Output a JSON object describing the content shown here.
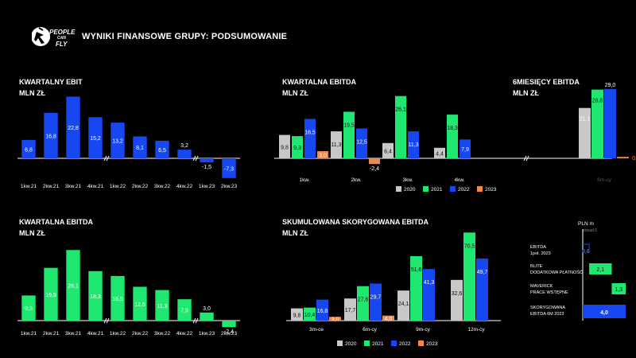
{
  "page": {
    "title": "WYNIKI FINANSOWE GRUPY: PODSUMOWANIE",
    "logo": {
      "line1": "PEOPLE",
      "line2": "CAN",
      "line3": "FLY"
    }
  },
  "colors": {
    "y2020": "#c8c8c8",
    "y2021": "#1fe870",
    "y2022": "#1747f0",
    "y2023": "#f0894a",
    "axis": "#ffffff"
  },
  "legend": [
    "2020",
    "2021",
    "2022",
    "2023"
  ],
  "chart_data": [
    {
      "id": "ebit",
      "type": "bar",
      "title": "KWARTALNY EBIT",
      "ylabel": "MLN ZŁ",
      "categories": [
        "1kw.21",
        "2kw.21",
        "3kw.21",
        "4kw.21",
        "1kw.22",
        "2kw.22",
        "3kw.22",
        "4kw.22",
        "1kw.23",
        "2kw.23"
      ],
      "values": [
        6.8,
        16.8,
        22.8,
        15.2,
        13.2,
        8.1,
        6.5,
        3.2,
        -1.5,
        -7.3
      ],
      "labels": [
        "6,8",
        "16,8",
        "22,8",
        "15,2",
        "13,2",
        "8,1",
        "6,5",
        "3,2",
        "-1,5",
        "-7,3"
      ],
      "color": "#1747f0"
    },
    {
      "id": "ebitda_q",
      "type": "bar",
      "title": "KWARTALNA EBITDA",
      "ylabel": "MLN ZŁ",
      "categories": [
        "1kw.",
        "2kw.",
        "3kw.",
        "4kw."
      ],
      "series": [
        {
          "name": "2020",
          "values": [
            9.8,
            11.3,
            6.4,
            4.4
          ],
          "labels": [
            "9,8",
            "11,3",
            "6,4",
            "4,4"
          ]
        },
        {
          "name": "2021",
          "values": [
            9.3,
            19.5,
            26.1,
            18.3
          ],
          "labels": [
            "9,3",
            "19,5",
            "26,1",
            "18,3"
          ]
        },
        {
          "name": "2022",
          "values": [
            16.5,
            12.5,
            11.3,
            7.9
          ],
          "labels": [
            "16,5",
            "12,5",
            "11,3",
            "7,9"
          ]
        },
        {
          "name": "2023",
          "values": [
            3.0,
            -2.4,
            null,
            null
          ],
          "labels": [
            "3,0",
            "-2,4",
            "",
            ""
          ]
        }
      ]
    },
    {
      "id": "ebitda_6m",
      "type": "bar",
      "title": "6MIESIĘCY EBITDA",
      "ylabel": "MLN ZŁ",
      "categories": [
        "6m-cy"
      ],
      "series": [
        {
          "name": "2020",
          "values": [
            21.1
          ],
          "labels": [
            "21,1"
          ]
        },
        {
          "name": "2021",
          "values": [
            28.8
          ],
          "labels": [
            "28,8"
          ]
        },
        {
          "name": "2022",
          "values": [
            29.0
          ],
          "labels": [
            "29,0"
          ]
        },
        {
          "name": "2023",
          "values": [
            0.6
          ],
          "labels": [
            "0,6"
          ]
        }
      ]
    },
    {
      "id": "ebitda_q2",
      "type": "bar",
      "title": "KWARTALNA EBITDA",
      "ylabel": "MLN ZŁ",
      "categories": [
        "1kw.21",
        "2kw.21",
        "3kw.21",
        "4kw.21",
        "1kw.22",
        "2kw.22",
        "3kw.22",
        "4kw.22",
        "1kw.23",
        "2kw.23"
      ],
      "values": [
        9.3,
        19.5,
        26.1,
        18.3,
        16.5,
        12.5,
        11.3,
        7.9,
        3.0,
        -2.4
      ],
      "labels": [
        "9,3",
        "19,5",
        "26,1",
        "18,3",
        "16,5",
        "12,5",
        "11,3",
        "7,9",
        "3,0",
        "-2,4"
      ],
      "color": "#1fe870"
    },
    {
      "id": "ebitda_cum",
      "type": "bar",
      "title": "SKUMULOWANA SKORYGOWANA EBITDA",
      "ylabel": "MLN ZŁ",
      "categories": [
        "3m-ce",
        "6m-cy",
        "9m-cy",
        "12m-cy"
      ],
      "series": [
        {
          "name": "2020",
          "values": [
            9.8,
            17.7,
            24.1,
            32.6
          ],
          "labels": [
            "9,8",
            "17,7",
            "24,1",
            "32,6"
          ]
        },
        {
          "name": "2021",
          "values": [
            10.4,
            27.6,
            51.6,
            70.5
          ],
          "labels": [
            "10,4",
            "27,6",
            "51,6",
            "70,5"
          ]
        },
        {
          "name": "2022",
          "values": [
            16.8,
            29.7,
            41.3,
            49.7
          ],
          "labels": [
            "16,8",
            "29,7",
            "41,3",
            "49,7"
          ]
        },
        {
          "name": "2023",
          "values": [
            3.0,
            4.0,
            null,
            null
          ],
          "labels": [
            "3,0",
            "4,0",
            "",
            ""
          ]
        }
      ]
    },
    {
      "id": "bridge",
      "type": "bar",
      "title": "PLN m",
      "note": "ponad 6",
      "categories": [
        "EBITDA 1poł. 2023",
        "BLITE DODATKOWA PŁATNOŚĆ",
        "MAVERICK PRACE WSTĘPNE",
        "SKORYGOWANA EBITDA 6M 2023"
      ],
      "category_lines": [
        [
          "EBITDA",
          "1poł. 2023"
        ],
        [
          "BLITE",
          "DODATKOWA PŁATNOŚĆ"
        ],
        [
          "MAVERICK",
          "PRACE WSTĘPNE"
        ],
        [
          "SKORYGOWANA",
          "EBITDA 6M 2023"
        ]
      ],
      "values": [
        0.6,
        2.1,
        1.3,
        4.0
      ],
      "labels": [
        "0,6",
        "2,1",
        "1,3",
        "4,0"
      ]
    }
  ]
}
